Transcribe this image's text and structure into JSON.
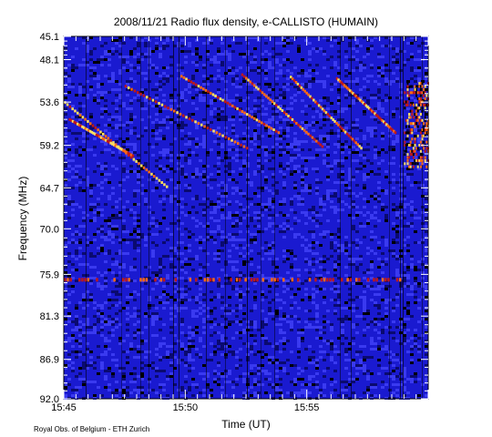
{
  "chart_data": {
    "type": "heatmap",
    "title": "2008/11/21  Radio flux density, e-CALLISTO (HUMAIN)",
    "xlabel": "Time (UT)",
    "ylabel": "Frequency (MHz)",
    "x_tick_labels": [
      "15:45",
      "15:50",
      "15:55"
    ],
    "x_tick_minutes": [
      0,
      5,
      10
    ],
    "x_range_minutes": [
      0,
      15
    ],
    "y_tick_labels": [
      "45.1",
      "48.1",
      "53.6",
      "59.2",
      "64.7",
      "70.0",
      "75.9",
      "81.3",
      "86.9",
      "92.0"
    ],
    "y_ticks": [
      45.1,
      48.1,
      53.6,
      59.2,
      64.7,
      70.0,
      75.9,
      81.3,
      86.9,
      92.0
    ],
    "y_range": [
      45.1,
      92.0
    ],
    "y_inverted": true,
    "colormap": [
      "#000000",
      "#0a0a70",
      "#1a1ad0",
      "#3a3af0",
      "#c01818",
      "#ff6a10",
      "#ffe060"
    ],
    "burst_tracks": [
      {
        "t_start": 0.0,
        "f_start": 53.6,
        "t_end": 4.2,
        "f_end": 64.5
      },
      {
        "t_start": 0.2,
        "f_start": 55.8,
        "t_end": 2.8,
        "f_end": 60.5
      },
      {
        "t_start": 2.5,
        "f_start": 51.5,
        "t_end": 7.5,
        "f_end": 59.5
      },
      {
        "t_start": 4.8,
        "f_start": 50.2,
        "t_end": 8.8,
        "f_end": 57.5
      },
      {
        "t_start": 7.3,
        "f_start": 50.0,
        "t_end": 10.6,
        "f_end": 59.3
      },
      {
        "t_start": 9.3,
        "f_start": 50.3,
        "t_end": 12.2,
        "f_end": 59.5
      },
      {
        "t_start": 11.2,
        "f_start": 50.5,
        "t_end": 13.6,
        "f_end": 57.5
      }
    ],
    "emission_band": {
      "f": 76.6,
      "t_start": 0.0,
      "t_end": 14.0
    },
    "late_burst": {
      "t_start": 14.0,
      "t_end": 15.0,
      "f_start": 51.0,
      "f_end": 62.0
    }
  },
  "footer": {
    "credit": "Royal Obs. of Belgium - ETH Zurich"
  }
}
